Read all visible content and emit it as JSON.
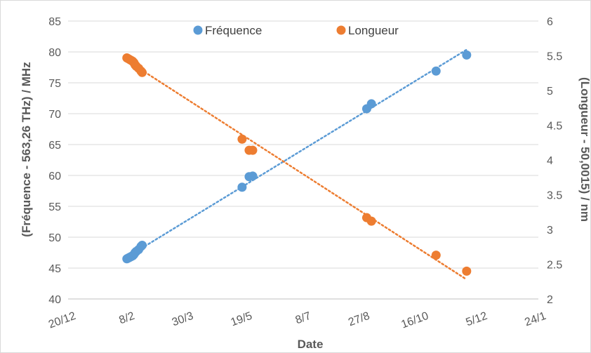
{
  "chart_data": {
    "type": "scatter",
    "xlabel": "Date",
    "ylabel_left": "(Fréquence - 563,26 THz) / MHz",
    "ylabel_right": "(Longueur - 50,0015) / nm",
    "x_ticks": [
      "20/12",
      "8/2",
      "30/3",
      "19/5",
      "8/7",
      "27/8",
      "16/10",
      "5/12",
      "24/1"
    ],
    "x_tick_days": [
      0,
      50,
      100,
      150,
      200,
      250,
      300,
      350,
      400
    ],
    "xlim_days": [
      0,
      400
    ],
    "y_left_lim": [
      40,
      85
    ],
    "y_left_ticks": [
      "40",
      "45",
      "50",
      "55",
      "60",
      "65",
      "70",
      "75",
      "80",
      "85"
    ],
    "y_right_lim": [
      2,
      6
    ],
    "y_right_ticks": [
      "2",
      "2.5",
      "3",
      "3.5",
      "4",
      "4.5",
      "5",
      "5.5",
      "6"
    ],
    "grid": "horizontal",
    "legend_position": "top",
    "series": [
      {
        "name": "Fréquence",
        "axis": "left",
        "color": "#5B9BD5",
        "trendline": "linear-dotted",
        "points": [
          {
            "day": 50,
            "y": 46.5
          },
          {
            "day": 51,
            "y": 46.6
          },
          {
            "day": 52,
            "y": 46.7
          },
          {
            "day": 53,
            "y": 46.8
          },
          {
            "day": 54,
            "y": 46.9
          },
          {
            "day": 55,
            "y": 47.0
          },
          {
            "day": 56,
            "y": 47.2
          },
          {
            "day": 57,
            "y": 47.5
          },
          {
            "day": 58,
            "y": 47.7
          },
          {
            "day": 60,
            "y": 48.0
          },
          {
            "day": 62,
            "y": 48.5
          },
          {
            "day": 63,
            "y": 48.7
          },
          {
            "day": 148,
            "y": 58.1
          },
          {
            "day": 154,
            "y": 59.8
          },
          {
            "day": 157,
            "y": 59.9
          },
          {
            "day": 254,
            "y": 70.8
          },
          {
            "day": 258,
            "y": 71.6
          },
          {
            "day": 313,
            "y": 76.9
          },
          {
            "day": 339,
            "y": 79.5
          }
        ]
      },
      {
        "name": "Longueur",
        "axis": "right",
        "color": "#ED7D31",
        "trendline": "linear-dotted",
        "points": [
          {
            "day": 50,
            "y": 5.47
          },
          {
            "day": 51,
            "y": 5.46
          },
          {
            "day": 52,
            "y": 5.45
          },
          {
            "day": 53,
            "y": 5.44
          },
          {
            "day": 54,
            "y": 5.43
          },
          {
            "day": 55,
            "y": 5.42
          },
          {
            "day": 56,
            "y": 5.4
          },
          {
            "day": 57,
            "y": 5.37
          },
          {
            "day": 58,
            "y": 5.35
          },
          {
            "day": 60,
            "y": 5.32
          },
          {
            "day": 62,
            "y": 5.28
          },
          {
            "day": 63,
            "y": 5.26
          },
          {
            "day": 148,
            "y": 4.3
          },
          {
            "day": 154,
            "y": 4.14
          },
          {
            "day": 157,
            "y": 4.14
          },
          {
            "day": 254,
            "y": 3.17
          },
          {
            "day": 258,
            "y": 3.12
          },
          {
            "day": 313,
            "y": 2.63
          },
          {
            "day": 339,
            "y": 2.4
          }
        ]
      }
    ]
  }
}
